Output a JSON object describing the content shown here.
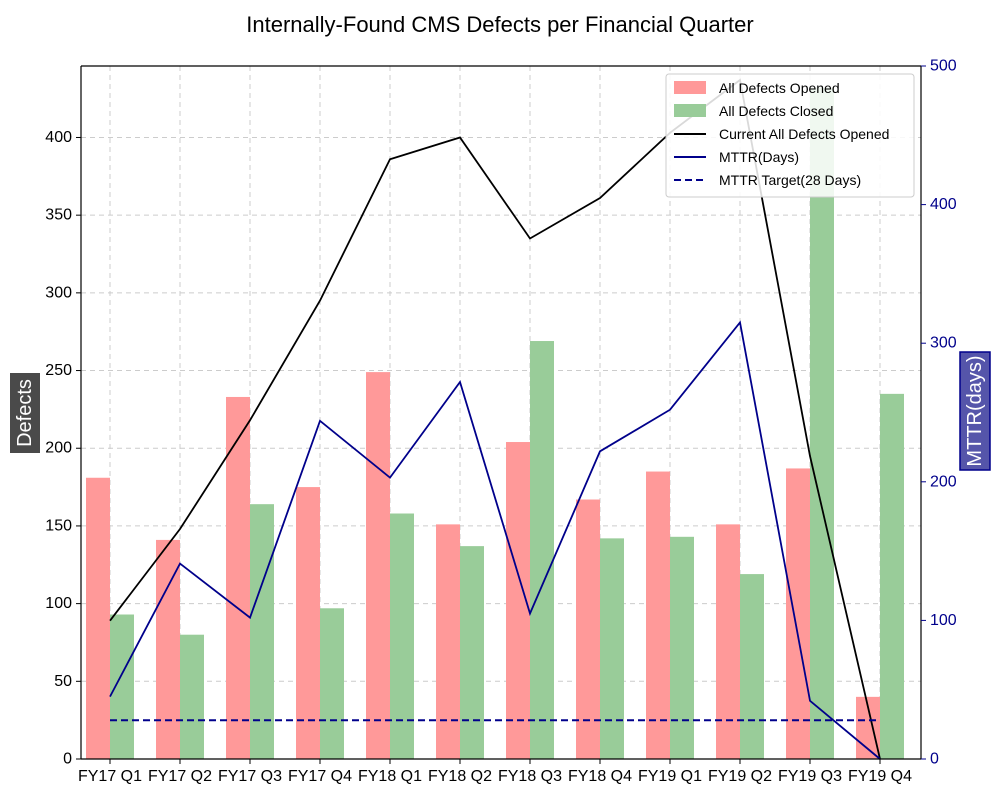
{
  "chart_data": {
    "type": "bar",
    "title": "Internally-Found CMS Defects per Financial Quarter",
    "ylabel": "Defects",
    "y2label": "MTTR(days)",
    "categories": [
      "FY17 Q1",
      "FY17 Q2",
      "FY17 Q3",
      "FY17 Q4",
      "FY18 Q1",
      "FY18 Q2",
      "FY18 Q3",
      "FY18 Q4",
      "FY19 Q1",
      "FY19 Q2",
      "FY19 Q3",
      "FY19 Q4"
    ],
    "ylim": [
      0,
      446
    ],
    "y2lim": [
      0,
      500
    ],
    "yticks": [
      0,
      50,
      100,
      150,
      200,
      250,
      300,
      350,
      400
    ],
    "y2ticks": [
      0,
      100,
      200,
      300,
      400,
      500
    ],
    "grid": true,
    "legend_position": "top-right",
    "series": [
      {
        "name": "All Defects Opened",
        "kind": "bar",
        "axis": "left",
        "color": "#ff9999",
        "values": [
          181,
          141,
          233,
          175,
          249,
          151,
          204,
          167,
          185,
          151,
          187,
          40
        ]
      },
      {
        "name": "All Defects Closed",
        "kind": "bar",
        "axis": "left",
        "color": "#99cc99",
        "values": [
          93,
          80,
          164,
          97,
          158,
          137,
          269,
          142,
          143,
          119,
          432,
          235
        ]
      },
      {
        "name": "Current All Defects Opened",
        "kind": "line",
        "axis": "left",
        "color": "#000000",
        "dash": false,
        "values": [
          89,
          148,
          218,
          295,
          386,
          400,
          335,
          361,
          403,
          437,
          195,
          0
        ]
      },
      {
        "name": "MTTR(Days)",
        "kind": "line",
        "axis": "right",
        "color": "#00008b",
        "dash": false,
        "values": [
          45,
          141,
          102,
          244,
          203,
          272,
          105,
          222,
          252,
          315,
          42,
          0
        ]
      },
      {
        "name": "MTTR Target(28 Days)",
        "kind": "line",
        "axis": "right",
        "color": "#00008b",
        "dash": true,
        "values": [
          28,
          28,
          28,
          28,
          28,
          28,
          28,
          28,
          28,
          28,
          28,
          28
        ]
      }
    ]
  }
}
